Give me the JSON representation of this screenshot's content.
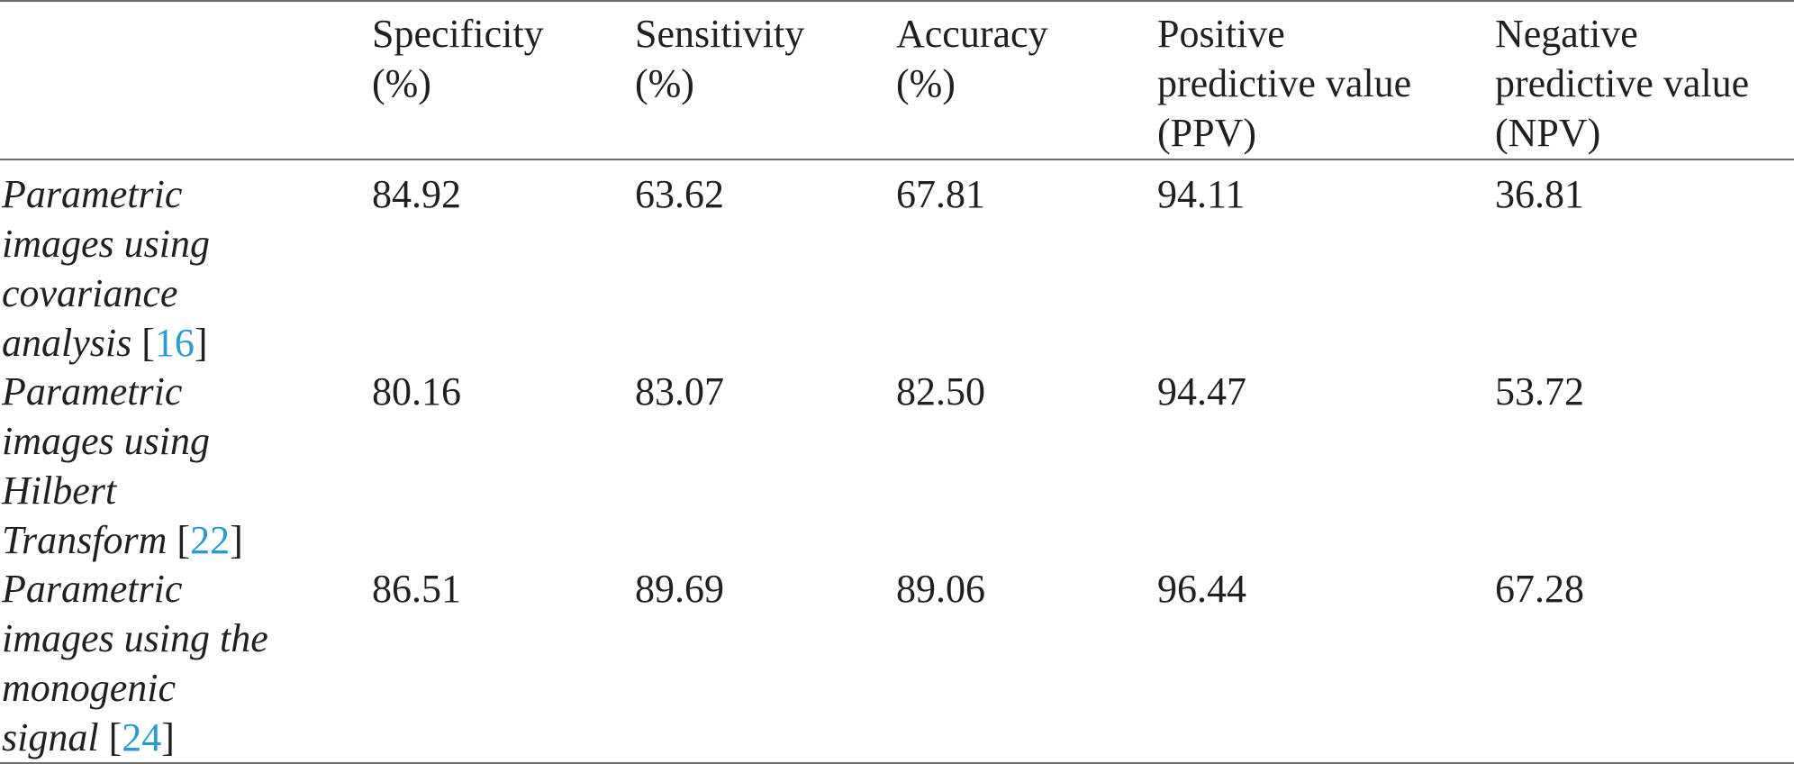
{
  "table": {
    "headers": [
      "",
      "Specificity (%)",
      "Sensitivity (%)",
      "Accuracy (%)",
      "Positive predictive value (PPV)",
      "Negative predictive value (NPV)"
    ],
    "header_lines": [
      [],
      [
        "Specificity",
        "(%)"
      ],
      [
        "Sensitivity",
        "(%)"
      ],
      [
        "Accuracy",
        "(%)"
      ],
      [
        "Positive",
        "predictive value",
        "(PPV)"
      ],
      [
        "Negative",
        "predictive value",
        "(NPV)"
      ]
    ],
    "rows": [
      {
        "label_lines": [
          "Parametric",
          "images using",
          "covariance",
          "analysis"
        ],
        "ref": "16",
        "values": [
          "84.92",
          "63.62",
          "67.81",
          "94.11",
          "36.81"
        ]
      },
      {
        "label_lines": [
          "Parametric",
          "images using",
          "Hilbert",
          "Transform"
        ],
        "ref": "22",
        "values": [
          "80.16",
          "83.07",
          "82.50",
          "94.47",
          "53.72"
        ]
      },
      {
        "label_lines": [
          "Parametric",
          "images using the",
          "monogenic",
          "signal"
        ],
        "ref": "24",
        "values": [
          "86.51",
          "89.69",
          "89.06",
          "96.44",
          "67.28"
        ]
      }
    ]
  },
  "colors": {
    "text": "#231f20",
    "link": "#2a9bd1",
    "rule": "#6d6e71"
  }
}
